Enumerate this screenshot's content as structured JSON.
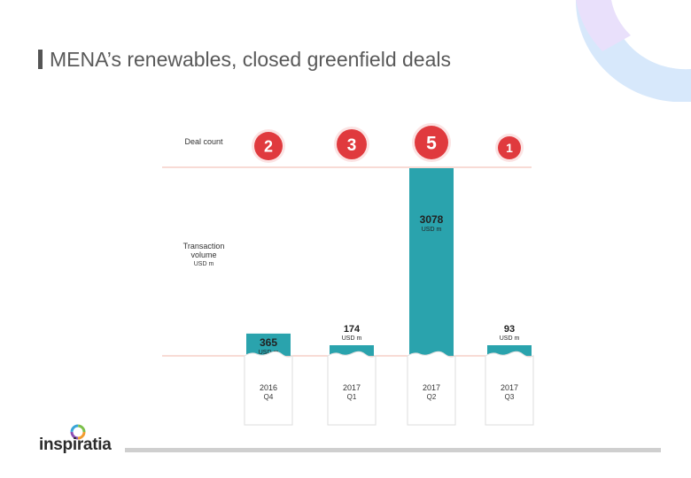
{
  "title": "MENA’s renewables, closed greenfield deals",
  "logo_text": "inspiratia",
  "colors": {
    "bar": "#2aa3ad",
    "bubble": "#e03a3e",
    "guide_line": "#f0b7ab",
    "card_border": "#dddddd",
    "text": "#333333"
  },
  "chart_data": {
    "type": "bar",
    "row_labels": {
      "deal_count": "Deal count",
      "volume_line1": "Transaction",
      "volume_line2": "volume",
      "volume_unit": "USD m"
    },
    "categories": [
      {
        "year": "2016",
        "quarter": "Q4"
      },
      {
        "year": "2017",
        "quarter": "Q1"
      },
      {
        "year": "2017",
        "quarter": "Q2"
      },
      {
        "year": "2017",
        "quarter": "Q3"
      }
    ],
    "series": [
      {
        "values": [
          365,
          174,
          3078,
          93
        ]
      }
    ],
    "deal_counts": [
      2,
      3,
      5,
      1
    ],
    "value_labels": [
      "365",
      "174",
      "3078",
      "93"
    ],
    "unit_label": "USD m",
    "ylim": [
      0,
      3078
    ],
    "grid": false
  }
}
